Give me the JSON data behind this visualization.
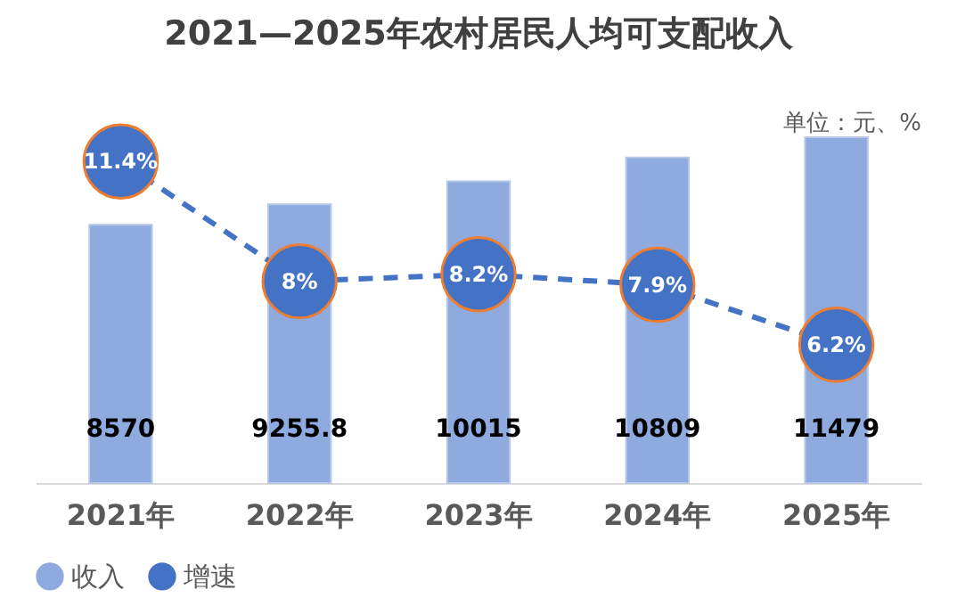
{
  "chart_data": {
    "type": "bar",
    "title": "2021—2025年农村居民人均可支配收入",
    "annotations": [
      "单位：元、%"
    ],
    "categories": [
      "2021年",
      "2022年",
      "2023年",
      "2024年",
      "2025年"
    ],
    "legend": "bottom",
    "grid": false,
    "series": [
      {
        "name": "收入",
        "color": "#8eaadf",
        "values": [
          8570,
          9255.8,
          10015,
          10809,
          11479
        ],
        "value_labels": [
          "8570",
          "9255.8",
          "10015",
          "10809",
          "11479"
        ]
      },
      {
        "name": "增速",
        "type": "line",
        "axis": "y2",
        "color": "#4472c4",
        "marker": "circle",
        "line_style": "dashed",
        "values": [
          11.4,
          8,
          8.2,
          7.9,
          6.2
        ],
        "value_labels": [
          "11.4%",
          "8%",
          "8.2%",
          "7.9%",
          "6.2%"
        ]
      }
    ]
  }
}
